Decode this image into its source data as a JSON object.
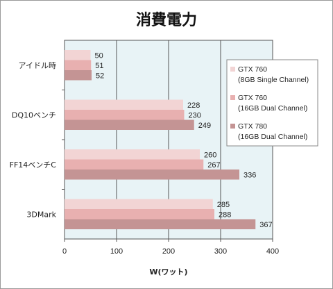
{
  "chart_data": {
    "type": "bar",
    "orientation": "horizontal",
    "title": "消費電力",
    "xlabel": "W(ワット)",
    "ylabel": "",
    "xlim": [
      0,
      400
    ],
    "xticks": [
      "0",
      "100",
      "200",
      "300",
      "400"
    ],
    "grid": true,
    "legend_position": "right",
    "categories": [
      "アイドル時",
      "DQ10ベンチ",
      "FF14ベンチC",
      "3DMark"
    ],
    "series": [
      {
        "name": "GTX 760 (8GB Single Channel)",
        "legend_lines": [
          "GTX 760",
          "(8GB Single Channel)"
        ],
        "color": "#f2d4d4",
        "values": [
          50,
          228,
          260,
          285
        ]
      },
      {
        "name": "GTX 760 (16GB Dual Channel)",
        "legend_lines": [
          "GTX 760",
          "(16GB Dual Channel)"
        ],
        "color": "#e8b0b0",
        "values": [
          51,
          230,
          267,
          288
        ]
      },
      {
        "name": "GTX 780 (16GB Dual Channel)",
        "legend_lines": [
          "GTX 780",
          "(16GB Dual Channel)"
        ],
        "color": "#c49494",
        "values": [
          52,
          249,
          336,
          367
        ]
      }
    ],
    "plot_background": "#e8f3f6"
  }
}
